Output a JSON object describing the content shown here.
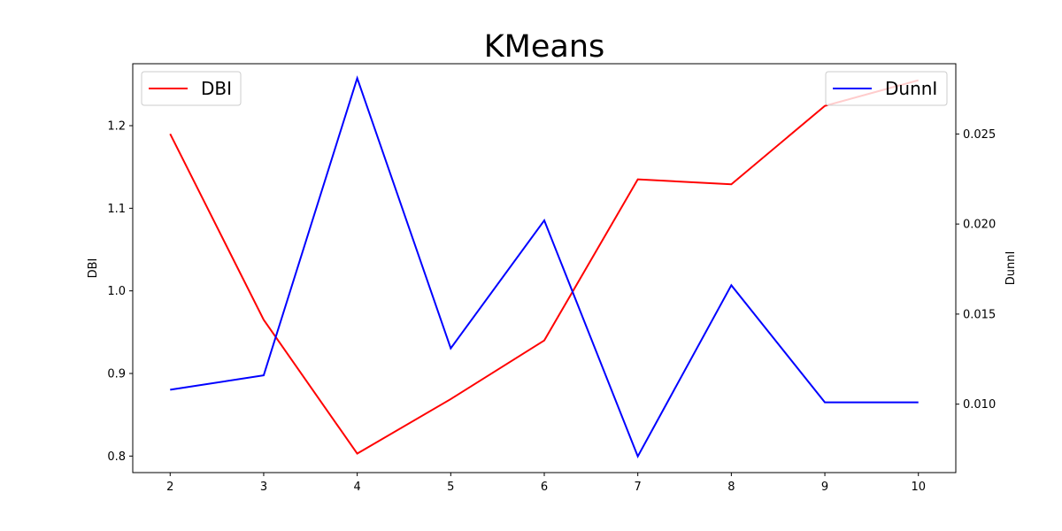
{
  "chart_data": {
    "type": "line",
    "title": "KMeans",
    "x": [
      2,
      3,
      4,
      5,
      6,
      7,
      8,
      9,
      10
    ],
    "xlim": [
      1.6,
      10.4
    ],
    "x_ticks": [
      "2",
      "3",
      "4",
      "5",
      "6",
      "7",
      "8",
      "9",
      "10"
    ],
    "grid": false,
    "axes": {
      "left": {
        "label": "DBI",
        "ylim": [
          0.78,
          1.275
        ],
        "ticks": [
          0.8,
          0.9,
          1.0,
          1.1,
          1.2
        ],
        "tick_labels": [
          "0.8",
          "0.9",
          "1.0",
          "1.1",
          "1.2"
        ]
      },
      "right": {
        "label": "DunnI",
        "ylim": [
          0.0062,
          0.0289
        ],
        "ticks": [
          0.01,
          0.015,
          0.02,
          0.025
        ],
        "tick_labels": [
          "0.010",
          "0.015",
          "0.020",
          "0.025"
        ]
      }
    },
    "series": [
      {
        "name": "DBI",
        "axis": "left",
        "color": "#ff0000",
        "values": [
          1.19,
          0.965,
          0.803,
          0.869,
          0.94,
          1.135,
          1.129,
          1.224,
          1.255
        ],
        "legend_position": "upper-left"
      },
      {
        "name": "DunnI",
        "axis": "right",
        "color": "#0000ff",
        "values": [
          0.0108,
          0.0116,
          0.0281,
          0.0131,
          0.0202,
          0.0071,
          0.0166,
          0.0101,
          0.0101
        ],
        "legend_position": "upper-right"
      }
    ]
  }
}
